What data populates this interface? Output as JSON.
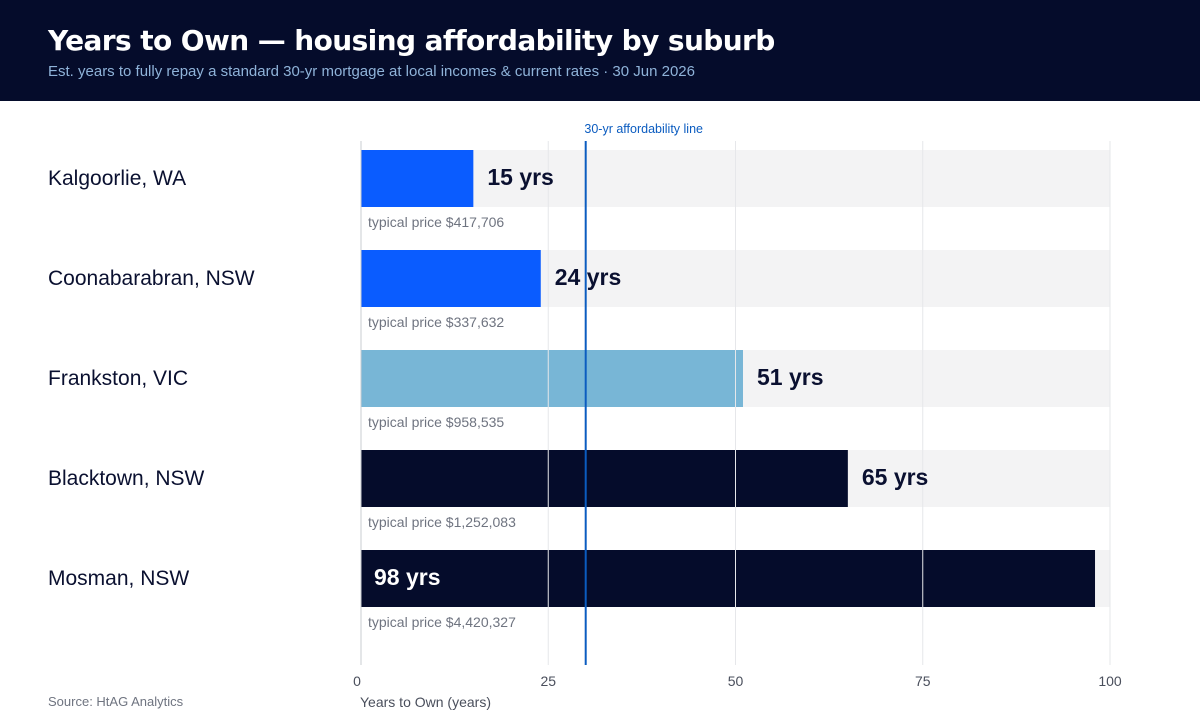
{
  "header": {
    "title": "Years to Own — housing affordability by suburb",
    "subtitle": "Est. years to fully repay a standard 30-yr mortgage at local incomes & current rates · 30 Jun 2026"
  },
  "footer": {
    "source": "Source: HtAG Analytics"
  },
  "chart_data": {
    "type": "bar",
    "orientation": "horizontal",
    "title": "Years to Own — housing affordability by suburb",
    "subtitle": "Est. years to fully repay a standard 30-yr mortgage at local incomes & current rates · 30 Jun 2026",
    "xlabel": "Years to Own (years)",
    "ylabel": "",
    "xlim": [
      0,
      100
    ],
    "xticks": [
      0,
      25,
      50,
      75,
      100
    ],
    "grid": true,
    "reference_line": {
      "value": 30,
      "label": "30-yr affordability line",
      "color": "#0b5cc0"
    },
    "value_suffix": " yrs",
    "categories": [
      "Kalgoorlie, WA",
      "Coonabarabran, NSW",
      "Frankston, VIC",
      "Blacktown, NSW",
      "Mosman, NSW"
    ],
    "values": [
      15,
      24,
      51,
      65,
      98
    ],
    "notes": [
      "typical price $417,706",
      "typical price $337,632",
      "typical price $958,535",
      "typical price $1,252,083",
      "typical price $4,420,327"
    ],
    "colors": [
      "#0a5cff",
      "#0a5cff",
      "#78b6d6",
      "#050c2b",
      "#050c2b"
    ],
    "track_color": "#f3f3f4"
  }
}
